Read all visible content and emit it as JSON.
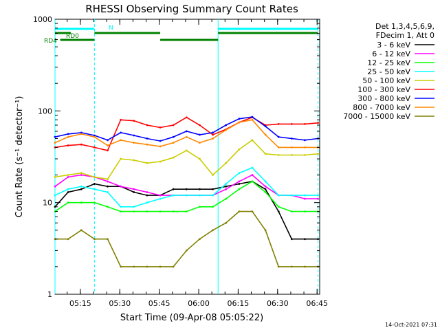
{
  "chart_data": {
    "type": "line",
    "title": "RHESSI Observing Summary Count Rates",
    "xlabel": "Start Time (09-Apr-08 05:05:22)",
    "ylabel": "Count Rate (s⁻¹ detector⁻¹)",
    "yscale": "log",
    "ylim": [
      1,
      1000
    ],
    "xlim": [
      "05:05:22",
      "06:46:00"
    ],
    "x_ticks": [
      "05:15",
      "05:30",
      "05:45",
      "06:00",
      "06:15",
      "06:30",
      "06:45"
    ],
    "y_ticks": [
      "1",
      "10",
      "100",
      "1000"
    ],
    "timestamp": "14-Oct-2021 07:31",
    "legend_header": [
      "Det 1,3,4,5,6,9,",
      "FDecim 1, Att 0"
    ],
    "legend_position": "right",
    "x_units": "minutes",
    "x": [
      0,
      5,
      10,
      15,
      20,
      25,
      30,
      35,
      40,
      45,
      50,
      55,
      60,
      65,
      70,
      75,
      80,
      85,
      90,
      95,
      100
    ],
    "series": [
      {
        "name": "3 - 6 keV",
        "color": "#000000",
        "values": [
          9,
          13,
          14,
          16,
          15,
          15,
          13,
          12,
          12,
          14,
          14,
          14,
          14,
          15,
          16,
          17,
          14,
          8,
          4,
          4,
          4
        ]
      },
      {
        "name": "6 - 12 keV",
        "color": "#ff00ff",
        "values": [
          15,
          19,
          20,
          19,
          17,
          15,
          14,
          13,
          12,
          12,
          12,
          12,
          12,
          14,
          17,
          20,
          15,
          12,
          12,
          11,
          11
        ]
      },
      {
        "name": "12 - 25 keV",
        "color": "#00ff00",
        "values": [
          8,
          10,
          10,
          10,
          9,
          8,
          8,
          8,
          8,
          8,
          8,
          9,
          9,
          11,
          14,
          17,
          13,
          9,
          8,
          8,
          8
        ]
      },
      {
        "name": "25 - 50 keV",
        "color": "#00ffff",
        "values": [
          12,
          14,
          15,
          14,
          13,
          9,
          9,
          10,
          11,
          12,
          12,
          12,
          12,
          16,
          21,
          24,
          17,
          12,
          12,
          12,
          12
        ]
      },
      {
        "name": "50 - 100 keV",
        "color": "#cccc00",
        "values": [
          19,
          20,
          21,
          19,
          18,
          30,
          29,
          27,
          28,
          31,
          37,
          30,
          20,
          27,
          38,
          48,
          34,
          33,
          33,
          33,
          34
        ]
      },
      {
        "name": "100 - 300 keV",
        "color": "#ff0000",
        "values": [
          40,
          42,
          43,
          40,
          37,
          80,
          78,
          70,
          66,
          70,
          85,
          70,
          55,
          63,
          75,
          85,
          70,
          72,
          72,
          72,
          74
        ]
      },
      {
        "name": "300 - 800 keV",
        "color": "#0000ff",
        "values": [
          52,
          56,
          58,
          54,
          48,
          58,
          54,
          50,
          47,
          52,
          60,
          55,
          58,
          70,
          82,
          86,
          68,
          52,
          50,
          48,
          50
        ]
      },
      {
        "name": "800 - 7000 keV",
        "color": "#ff8800",
        "values": [
          45,
          52,
          56,
          52,
          42,
          48,
          45,
          43,
          41,
          45,
          52,
          45,
          50,
          62,
          75,
          80,
          55,
          40,
          40,
          40,
          40
        ]
      },
      {
        "name": "7000 - 15000 keV",
        "color": "#808000",
        "values": [
          4,
          4,
          5,
          4,
          4,
          2,
          2,
          2,
          2,
          2,
          3,
          4,
          5,
          6,
          8,
          8,
          5,
          2,
          2,
          2,
          2
        ]
      }
    ],
    "bars": {
      "N": {
        "label": "N",
        "color": "#00ffff",
        "segments": [
          [
            0,
            15
          ],
          [
            62,
            100
          ]
        ]
      },
      "RD0": {
        "label": "RD0",
        "color": "#008000",
        "segments": [
          [
            0,
            6
          ],
          [
            15,
            40
          ],
          [
            62,
            100
          ]
        ]
      },
      "RD4": {
        "label": "RD4",
        "color": "#008000",
        "segments": [
          [
            2,
            15
          ],
          [
            40,
            62
          ]
        ]
      }
    },
    "markers": {
      "solid": [
        0,
        62
      ],
      "dashed": [
        15,
        100
      ]
    }
  }
}
